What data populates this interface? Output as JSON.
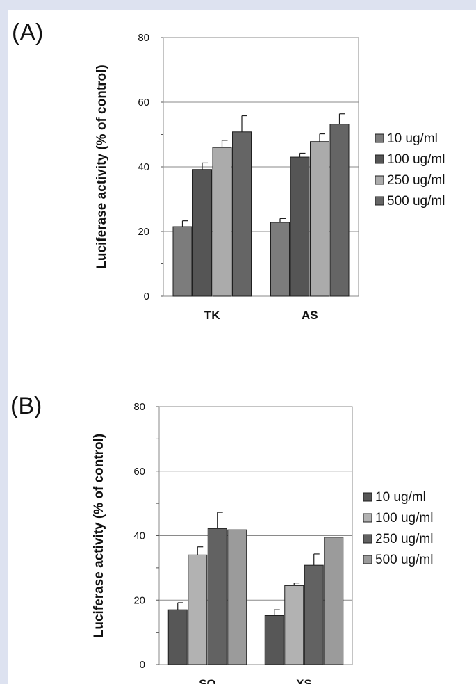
{
  "chart_data": [
    {
      "panel": "(A)",
      "type": "bar",
      "ylabel": "Luciferase activity (% of control)",
      "ylim": [
        0,
        80
      ],
      "yticks": [
        0,
        20,
        40,
        60,
        80
      ],
      "grid": true,
      "legend_position": "right",
      "categories": [
        "TK",
        "AS"
      ],
      "series": [
        {
          "name": "10 ug/ml",
          "color": "#7c7c7c",
          "values": [
            21.5,
            22.8
          ],
          "errors": [
            1.8,
            1.2
          ]
        },
        {
          "name": "100 ug/ml",
          "color": "#555555",
          "values": [
            39.2,
            43.0
          ],
          "errors": [
            2.0,
            1.2
          ]
        },
        {
          "name": "250 ug/ml",
          "color": "#ababab",
          "values": [
            46.0,
            47.8
          ],
          "errors": [
            2.2,
            2.4
          ]
        },
        {
          "name": "500 ug/ml",
          "color": "#656565",
          "values": [
            50.8,
            53.2
          ],
          "errors": [
            5.0,
            3.2
          ]
        }
      ]
    },
    {
      "panel": "(B)",
      "type": "bar",
      "ylabel": "Luciferase activity (% of control)",
      "ylim": [
        0,
        80
      ],
      "yticks": [
        0,
        20,
        40,
        60,
        80
      ],
      "grid": true,
      "legend_position": "right",
      "categories": [
        "SO",
        "XS"
      ],
      "series": [
        {
          "name": "10 ug/ml",
          "color": "#575757",
          "values": [
            17.0,
            15.2
          ],
          "errors": [
            2.2,
            1.8
          ]
        },
        {
          "name": "100 ug/ml",
          "color": "#b2b2b2",
          "values": [
            34.0,
            24.5
          ],
          "errors": [
            2.5,
            0.8
          ]
        },
        {
          "name": "250 ug/ml",
          "color": "#626262",
          "values": [
            42.2,
            30.8
          ],
          "errors": [
            5.0,
            3.5
          ]
        },
        {
          "name": "500 ug/ml",
          "color": "#9b9b9b",
          "values": [
            41.8,
            39.5
          ],
          "errors": [
            0,
            0
          ]
        }
      ]
    }
  ]
}
